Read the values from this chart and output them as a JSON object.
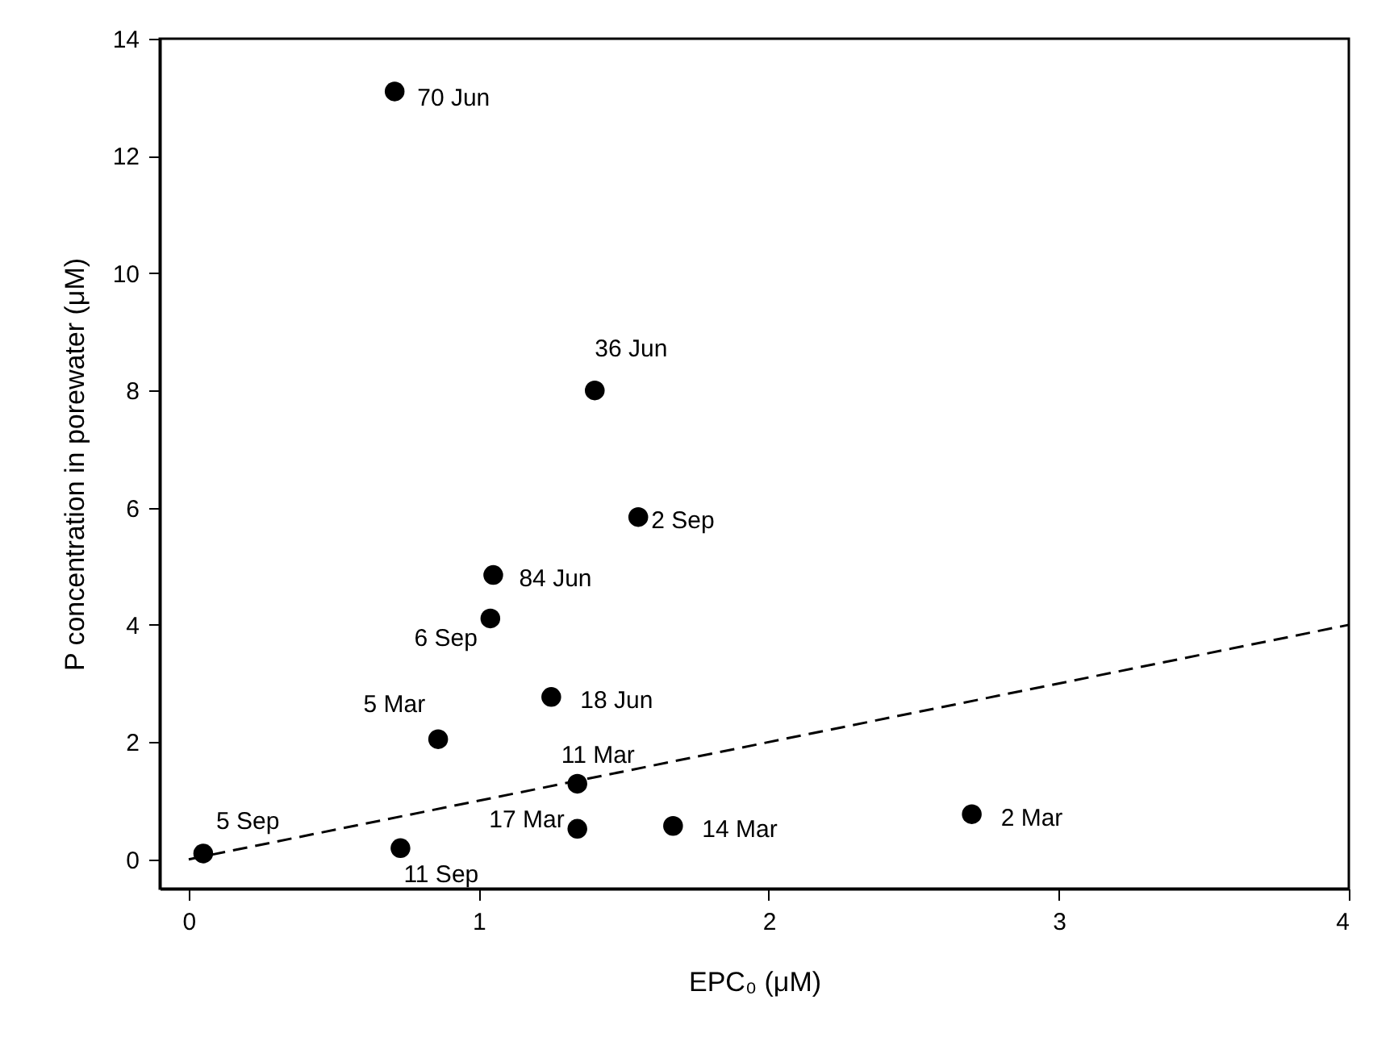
{
  "chart_data": {
    "type": "scatter",
    "xlabel": "EPC₀ (μM)",
    "ylabel": "P concentration in porewater (μM)",
    "series": [
      {
        "type": "scatter",
        "color": "#000000",
        "marker": "circle",
        "x": [
          0.71,
          1.4,
          1.55,
          1.05,
          1.04,
          1.25,
          0.86,
          1.34,
          1.34,
          1.67,
          2.7,
          0.73,
          0.05
        ],
        "values": [
          13.1,
          8.0,
          5.84,
          4.85,
          4.11,
          2.77,
          2.05,
          1.29,
          0.52,
          0.57,
          0.77,
          0.19,
          0.1
        ]
      },
      {
        "type": "line",
        "color": "#000000",
        "line_style": "dashed",
        "x": [
          0,
          4
        ],
        "values": [
          0,
          4
        ]
      }
    ],
    "annotations": [
      {
        "text": "70 Jun",
        "x": 0.71,
        "y": 13.1
      },
      {
        "text": "36 Jun",
        "x": 1.4,
        "y": 8.0
      },
      {
        "text": "2 Sep",
        "x": 1.55,
        "y": 5.84
      },
      {
        "text": "84 Jun",
        "x": 1.05,
        "y": 4.85
      },
      {
        "text": "6 Sep",
        "x": 1.04,
        "y": 4.11
      },
      {
        "text": "18 Jun",
        "x": 1.25,
        "y": 2.77
      },
      {
        "text": "5 Mar",
        "x": 0.86,
        "y": 2.05
      },
      {
        "text": "11 Mar",
        "x": 1.34,
        "y": 1.29
      },
      {
        "text": "17 Mar",
        "x": 1.34,
        "y": 0.52
      },
      {
        "text": "14 Mar",
        "x": 1.67,
        "y": 0.57
      },
      {
        "text": "2 Mar",
        "x": 2.7,
        "y": 0.77
      },
      {
        "text": "11 Sep",
        "x": 0.73,
        "y": 0.19
      },
      {
        "text": "5 Sep",
        "x": 0.05,
        "y": 0.1
      }
    ],
    "xlim": [
      -0.1,
      4
    ],
    "ylim": [
      -0.5,
      14
    ],
    "xticks": [
      0,
      1,
      2,
      3,
      4
    ],
    "yticks": [
      0,
      2,
      4,
      6,
      8,
      10,
      12,
      14
    ],
    "grid": false
  }
}
